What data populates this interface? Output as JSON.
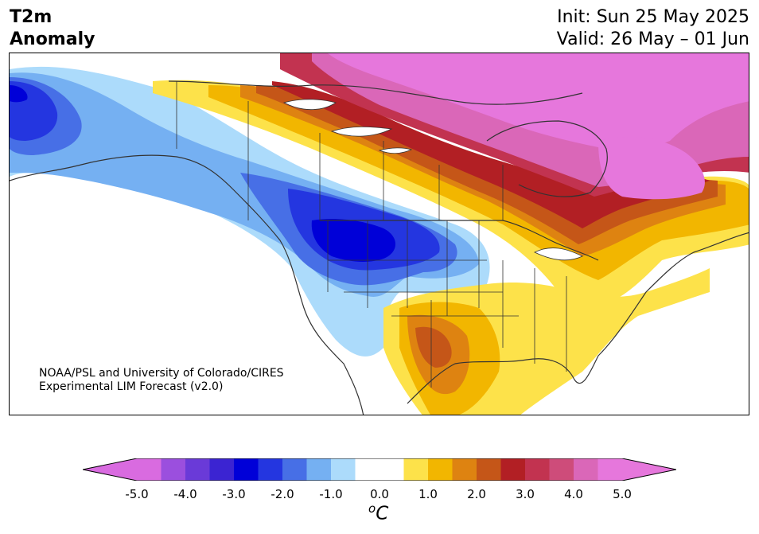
{
  "header": {
    "title_line1": "T2m",
    "title_line2": "Anomaly",
    "init": "Init: Sun 25 May 2025",
    "valid": "Valid: 26 May – 01 Jun"
  },
  "credit": {
    "line1": "NOAA/PSL and University of Colorado/CIRES",
    "line2": "Experimental LIM Forecast (v2.0)"
  },
  "colorbar": {
    "unit_sup": "o",
    "unit_main": "C",
    "range": [
      -5.0,
      5.0
    ],
    "ticks": [
      "-5.0",
      "-4.0",
      "-3.0",
      "-2.0",
      "-1.0",
      "0.0",
      "1.0",
      "2.0",
      "3.0",
      "4.0",
      "5.0"
    ],
    "colors": [
      "#d96be0",
      "#9b4fde",
      "#6a3ad8",
      "#3b24d2",
      "#0000d8",
      "#2436e0",
      "#476fe6",
      "#75b0f2",
      "#acdbfb",
      "#ffffff",
      "#ffffff",
      "#fde24a",
      "#f2b600",
      "#de8311",
      "#c55618",
      "#b21f24",
      "#c23350",
      "#ce4c7a",
      "#da67b8",
      "#e677dc"
    ],
    "under_color": "#d96be0",
    "over_color": "#e677dc"
  },
  "anomaly_fields": [
    {
      "name": "alaska-cold",
      "level": -3.0,
      "color": "#0000d8"
    },
    {
      "name": "northwest-cold-core",
      "level": -3.0,
      "color": "#0000d8"
    },
    {
      "name": "canadian-arctic-warm",
      "level": 5.0,
      "color": "#e677dc"
    },
    {
      "name": "quebec-warm",
      "level": 5.0,
      "color": "#e677dc"
    },
    {
      "name": "texas-warm-core",
      "level": 2.5,
      "color": "#c55618"
    },
    {
      "name": "east-us-warm",
      "level": 1.0,
      "color": "#fde24a"
    }
  ]
}
